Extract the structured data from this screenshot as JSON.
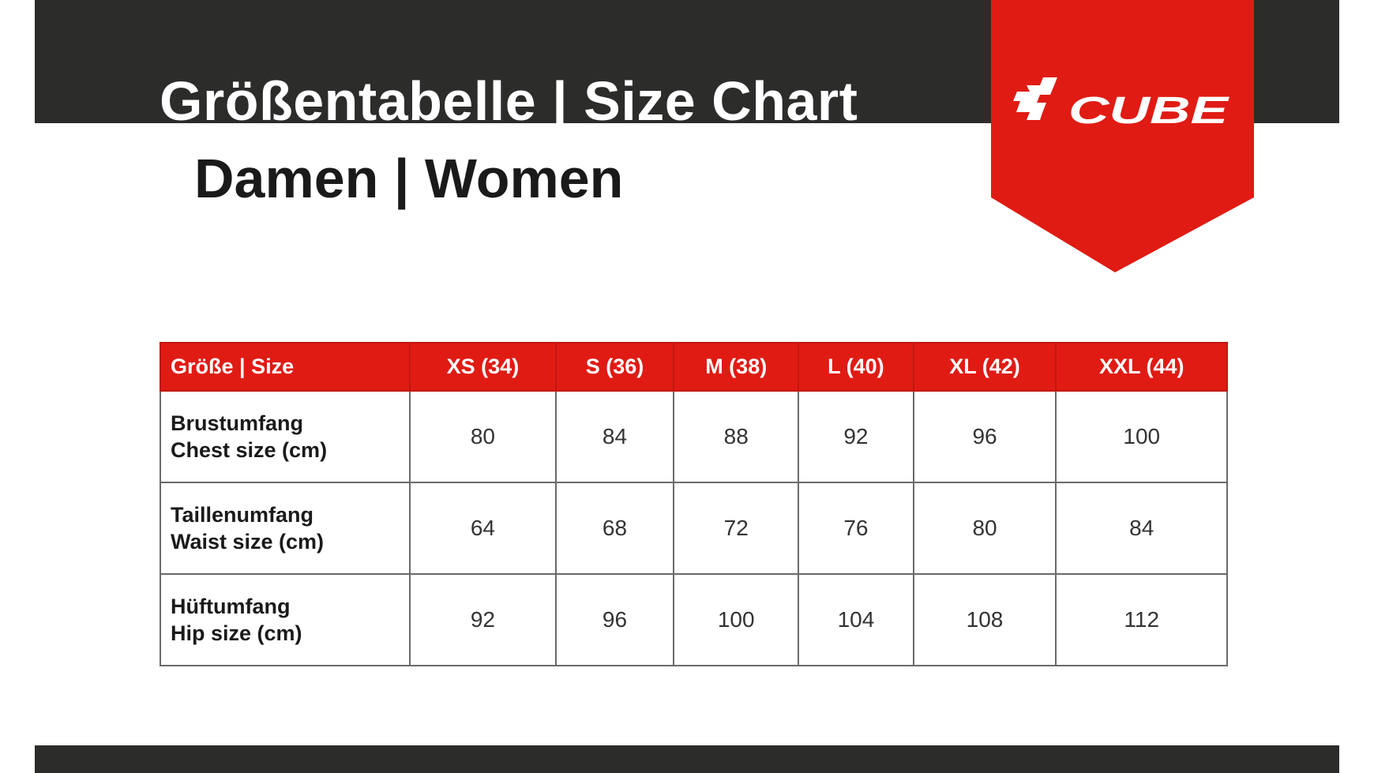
{
  "header": {
    "title": "Größentabelle | Size Chart",
    "subtitle": "Damen | Women",
    "logo_text": "CUBE"
  },
  "colors": {
    "brand_red": "#e01b14",
    "dark_band": "#2c2c2a"
  },
  "table": {
    "columns": [
      "Größe | Size",
      "XS (34)",
      "S (36)",
      "M (38)",
      "L (40)",
      "XL (42)",
      "XXL (44)"
    ],
    "rows": [
      {
        "label_de": "Brustumfang",
        "label_en": "Chest size (cm)",
        "values": [
          "80",
          "84",
          "88",
          "92",
          "96",
          "100"
        ]
      },
      {
        "label_de": "Taillenumfang",
        "label_en": "Waist size (cm)",
        "values": [
          "64",
          "68",
          "72",
          "76",
          "80",
          "84"
        ]
      },
      {
        "label_de": "Hüftumfang",
        "label_en": "Hip size (cm)",
        "values": [
          "92",
          "96",
          "100",
          "104",
          "108",
          "112"
        ]
      }
    ]
  }
}
